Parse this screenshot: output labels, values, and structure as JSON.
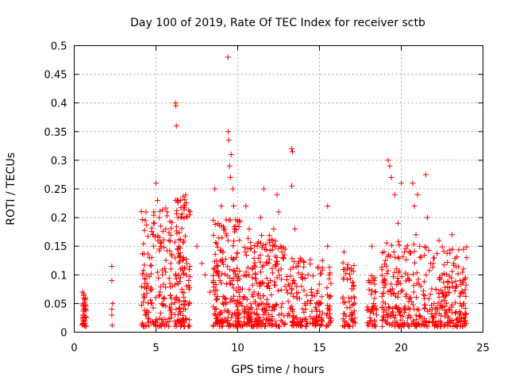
{
  "chart_data": {
    "type": "scatter",
    "title": "Day 100 of 2019, Rate Of TEC Index for receiver sctb",
    "xlabel": "GPS time / hours",
    "ylabel": "ROTI / TECUs",
    "xlim": [
      0,
      25
    ],
    "ylim": [
      0,
      0.5
    ],
    "grid": true,
    "marker": "plus",
    "color": "#ff0000",
    "x_ticks": [
      "0",
      "5",
      "10",
      "15",
      "20",
      "25"
    ],
    "x_tick_values": [
      0,
      5,
      10,
      15,
      20,
      25
    ],
    "y_ticks": [
      "0",
      "0.05",
      "0.1",
      "0.15",
      "0.2",
      "0.25",
      "0.3",
      "0.35",
      "0.4",
      "0.45",
      "0.5"
    ],
    "y_tick_values": [
      0,
      0.05,
      0.1,
      0.15,
      0.2,
      0.25,
      0.3,
      0.35,
      0.4,
      0.45,
      0.5
    ],
    "series": [
      {
        "name": "ROTI",
        "points": [
          [
            0.5,
            0.07
          ],
          [
            0.55,
            0.05
          ],
          [
            0.6,
            0.04
          ],
          [
            0.62,
            0.03
          ],
          [
            0.65,
            0.02
          ],
          [
            0.58,
            0.015
          ],
          [
            0.68,
            0.06
          ],
          [
            0.7,
            0.045
          ],
          [
            0.52,
            0.025
          ],
          [
            0.6,
            0.012
          ],
          [
            2.3,
            0.115
          ],
          [
            2.3,
            0.09
          ],
          [
            2.35,
            0.05
          ],
          [
            2.3,
            0.04
          ],
          [
            2.3,
            0.03
          ],
          [
            2.32,
            0.012
          ],
          [
            4.2,
            0.1
          ],
          [
            4.3,
            0.06
          ],
          [
            4.4,
            0.03
          ],
          [
            4.5,
            0.08
          ],
          [
            4.6,
            0.13
          ],
          [
            4.7,
            0.05
          ],
          [
            4.8,
            0.17
          ],
          [
            4.9,
            0.19
          ],
          [
            5.0,
            0.26
          ],
          [
            5.1,
            0.23
          ],
          [
            5.2,
            0.2
          ],
          [
            5.3,
            0.15
          ],
          [
            5.4,
            0.1
          ],
          [
            5.5,
            0.06
          ],
          [
            5.6,
            0.18
          ],
          [
            5.7,
            0.21
          ],
          [
            5.8,
            0.16
          ],
          [
            5.9,
            0.12
          ],
          [
            6.0,
            0.08
          ],
          [
            6.2,
            0.4
          ],
          [
            6.22,
            0.395
          ],
          [
            6.25,
            0.36
          ],
          [
            6.3,
            0.23
          ],
          [
            6.35,
            0.2
          ],
          [
            6.4,
            0.15
          ],
          [
            6.5,
            0.11
          ],
          [
            6.6,
            0.07
          ],
          [
            6.7,
            0.13
          ],
          [
            6.8,
            0.04
          ],
          [
            6.9,
            0.2
          ],
          [
            7.0,
            0.09
          ],
          [
            7.5,
            0.15
          ],
          [
            7.8,
            0.12
          ],
          [
            8.0,
            0.1
          ],
          [
            8.3,
            0.07
          ],
          [
            8.6,
            0.25
          ],
          [
            8.8,
            0.19
          ],
          [
            9.0,
            0.22
          ],
          [
            9.1,
            0.14
          ],
          [
            9.2,
            0.06
          ],
          [
            9.4,
            0.48
          ],
          [
            9.42,
            0.35
          ],
          [
            9.45,
            0.335
          ],
          [
            9.5,
            0.29
          ],
          [
            9.6,
            0.31
          ],
          [
            9.55,
            0.27
          ],
          [
            9.7,
            0.25
          ],
          [
            9.75,
            0.22
          ],
          [
            9.8,
            0.18
          ],
          [
            9.9,
            0.13
          ],
          [
            10.0,
            0.09
          ],
          [
            10.2,
            0.05
          ],
          [
            10.5,
            0.22
          ],
          [
            10.7,
            0.18
          ],
          [
            10.9,
            0.11
          ],
          [
            11.0,
            0.07
          ],
          [
            11.2,
            0.15
          ],
          [
            11.4,
            0.2
          ],
          [
            11.6,
            0.25
          ],
          [
            11.8,
            0.12
          ],
          [
            12.0,
            0.09
          ],
          [
            12.2,
            0.18
          ],
          [
            12.4,
            0.24
          ],
          [
            12.5,
            0.21
          ],
          [
            12.7,
            0.14
          ],
          [
            12.9,
            0.08
          ],
          [
            13.3,
            0.32
          ],
          [
            13.35,
            0.315
          ],
          [
            13.3,
            0.255
          ],
          [
            13.5,
            0.18
          ],
          [
            13.7,
            0.12
          ],
          [
            13.9,
            0.08
          ],
          [
            14.1,
            0.05
          ],
          [
            14.3,
            0.1
          ],
          [
            14.5,
            0.07
          ],
          [
            14.8,
            0.04
          ],
          [
            15.0,
            0.03
          ],
          [
            15.5,
            0.22
          ],
          [
            15.5,
            0.15
          ],
          [
            15.6,
            0.1
          ],
          [
            15.6,
            0.06
          ],
          [
            15.7,
            0.02
          ],
          [
            16.5,
            0.14
          ],
          [
            16.7,
            0.11
          ],
          [
            16.8,
            0.06
          ],
          [
            17.0,
            0.03
          ],
          [
            17.1,
            0.08
          ],
          [
            18.0,
            0.09
          ],
          [
            18.2,
            0.15
          ],
          [
            18.3,
            0.05
          ],
          [
            18.5,
            0.03
          ],
          [
            19.2,
            0.3
          ],
          [
            19.3,
            0.29
          ],
          [
            19.4,
            0.27
          ],
          [
            19.6,
            0.24
          ],
          [
            19.8,
            0.19
          ],
          [
            20.0,
            0.26
          ],
          [
            20.2,
            0.14
          ],
          [
            20.4,
            0.1
          ],
          [
            20.5,
            0.06
          ],
          [
            20.7,
            0.26
          ],
          [
            20.8,
            0.22
          ],
          [
            20.9,
            0.17
          ],
          [
            21.0,
            0.24
          ],
          [
            21.2,
            0.08
          ],
          [
            21.5,
            0.275
          ],
          [
            21.6,
            0.2
          ],
          [
            21.8,
            0.12
          ],
          [
            22.0,
            0.05
          ],
          [
            22.3,
            0.16
          ],
          [
            22.5,
            0.1
          ],
          [
            22.7,
            0.07
          ],
          [
            22.9,
            0.04
          ],
          [
            23.1,
            0.17
          ],
          [
            23.2,
            0.12
          ],
          [
            23.4,
            0.08
          ],
          [
            23.6,
            0.05
          ],
          [
            23.8,
            0.03
          ],
          [
            24.0,
            0.13
          ]
        ],
        "dense_clusters": [
          {
            "x": [
              0.5,
              0.75
            ],
            "y": [
              0.01,
              0.07
            ],
            "n": 30
          },
          {
            "x": [
              4.1,
              6.0
            ],
            "y": [
              0.01,
              0.22
            ],
            "n": 150
          },
          {
            "x": [
              6.1,
              7.1
            ],
            "y": [
              0.01,
              0.24
            ],
            "n": 130
          },
          {
            "x": [
              8.5,
              10.2
            ],
            "y": [
              0.01,
              0.2
            ],
            "n": 200
          },
          {
            "x": [
              10.2,
              12.9
            ],
            "y": [
              0.01,
              0.17
            ],
            "n": 240
          },
          {
            "x": [
              13.0,
              15.2
            ],
            "y": [
              0.01,
              0.13
            ],
            "n": 150
          },
          {
            "x": [
              15.4,
              15.7
            ],
            "y": [
              0.01,
              0.13
            ],
            "n": 25
          },
          {
            "x": [
              16.4,
              17.2
            ],
            "y": [
              0.01,
              0.14
            ],
            "n": 60
          },
          {
            "x": [
              17.9,
              18.5
            ],
            "y": [
              0.01,
              0.11
            ],
            "n": 40
          },
          {
            "x": [
              18.8,
              21.8
            ],
            "y": [
              0.01,
              0.16
            ],
            "n": 220
          },
          {
            "x": [
              21.8,
              24.0
            ],
            "y": [
              0.01,
              0.15
            ],
            "n": 180
          }
        ]
      }
    ]
  }
}
